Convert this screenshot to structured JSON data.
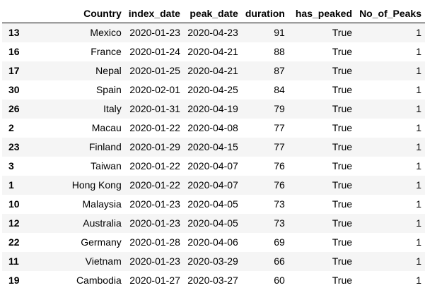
{
  "table": {
    "columns": [
      "",
      "Country",
      "index_date",
      "peak_date",
      "duration",
      "has_peaked",
      "No_of_Peaks"
    ],
    "rows": [
      [
        "13",
        "Mexico",
        "2020-01-23",
        "2020-04-23",
        "91",
        "True",
        "1"
      ],
      [
        "16",
        "France",
        "2020-01-24",
        "2020-04-21",
        "88",
        "True",
        "1"
      ],
      [
        "17",
        "Nepal",
        "2020-01-25",
        "2020-04-21",
        "87",
        "True",
        "1"
      ],
      [
        "30",
        "Spain",
        "2020-02-01",
        "2020-04-25",
        "84",
        "True",
        "1"
      ],
      [
        "26",
        "Italy",
        "2020-01-31",
        "2020-04-19",
        "79",
        "True",
        "1"
      ],
      [
        "2",
        "Macau",
        "2020-01-22",
        "2020-04-08",
        "77",
        "True",
        "1"
      ],
      [
        "23",
        "Finland",
        "2020-01-29",
        "2020-04-15",
        "77",
        "True",
        "1"
      ],
      [
        "3",
        "Taiwan",
        "2020-01-22",
        "2020-04-07",
        "76",
        "True",
        "1"
      ],
      [
        "1",
        "Hong Kong",
        "2020-01-22",
        "2020-04-07",
        "76",
        "True",
        "1"
      ],
      [
        "10",
        "Malaysia",
        "2020-01-23",
        "2020-04-05",
        "73",
        "True",
        "1"
      ],
      [
        "12",
        "Australia",
        "2020-01-23",
        "2020-04-05",
        "73",
        "True",
        "1"
      ],
      [
        "22",
        "Germany",
        "2020-01-28",
        "2020-04-06",
        "69",
        "True",
        "1"
      ],
      [
        "11",
        "Vietnam",
        "2020-01-23",
        "2020-03-29",
        "66",
        "True",
        "1"
      ],
      [
        "19",
        "Cambodia",
        "2020-01-27",
        "2020-03-27",
        "60",
        "True",
        "1"
      ]
    ]
  }
}
